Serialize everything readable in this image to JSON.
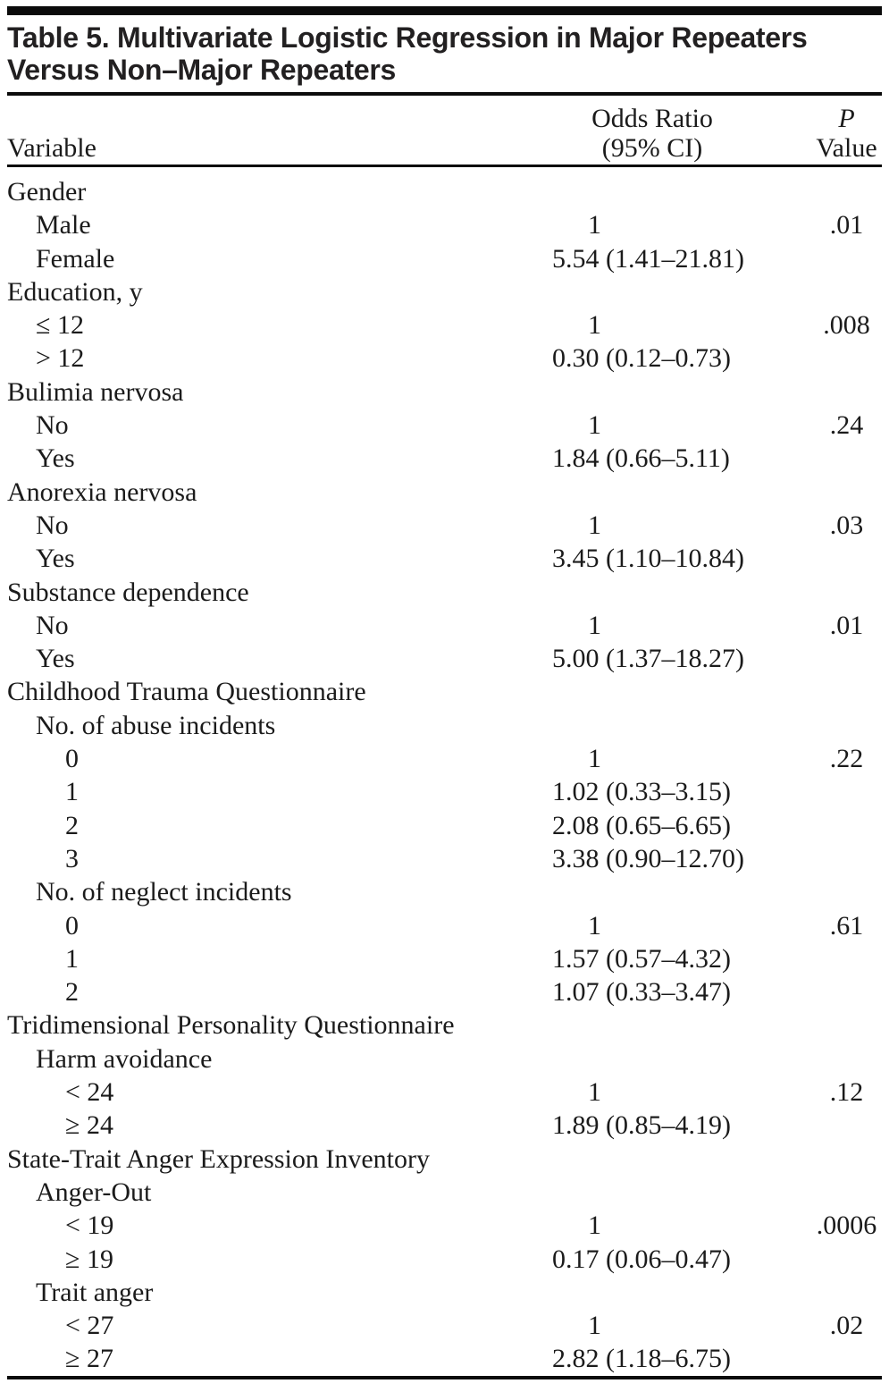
{
  "table": {
    "title_line1": "Table 5. Multivariate Logistic Regression in Major Repeaters",
    "title_line2": "Versus Non–Major Repeaters",
    "columns": {
      "variable": "Variable",
      "odds_ratio_line1": "Odds Ratio",
      "odds_ratio_line2": "(95% CI)",
      "p_line1": "P",
      "p_line2": "Value"
    },
    "rows": [
      {
        "label": "Gender",
        "indent": 0,
        "or": "",
        "p": ""
      },
      {
        "label": "Male",
        "indent": 1,
        "or": "1",
        "p": ".01"
      },
      {
        "label": "Female",
        "indent": 1,
        "or": "5.54 (1.41–21.81)",
        "p": ""
      },
      {
        "label": "Education, y",
        "indent": 0,
        "or": "",
        "p": ""
      },
      {
        "label": "≤ 12",
        "indent": 1,
        "or": "1",
        "p": ".008"
      },
      {
        "label": "> 12",
        "indent": 1,
        "or": "0.30 (0.12–0.73)",
        "p": ""
      },
      {
        "label": "Bulimia nervosa",
        "indent": 0,
        "or": "",
        "p": ""
      },
      {
        "label": "No",
        "indent": 1,
        "or": "1",
        "p": ".24"
      },
      {
        "label": "Yes",
        "indent": 1,
        "or": "1.84 (0.66–5.11)",
        "p": ""
      },
      {
        "label": "Anorexia nervosa",
        "indent": 0,
        "or": "",
        "p": ""
      },
      {
        "label": "No",
        "indent": 1,
        "or": "1",
        "p": ".03"
      },
      {
        "label": "Yes",
        "indent": 1,
        "or": "3.45 (1.10–10.84)",
        "p": ""
      },
      {
        "label": "Substance dependence",
        "indent": 0,
        "or": "",
        "p": ""
      },
      {
        "label": "No",
        "indent": 1,
        "or": "1",
        "p": ".01"
      },
      {
        "label": "Yes",
        "indent": 1,
        "or": "5.00 (1.37–18.27)",
        "p": ""
      },
      {
        "label": "Childhood Trauma Questionnaire",
        "indent": 0,
        "or": "",
        "p": ""
      },
      {
        "label": "No. of abuse incidents",
        "indent": 1,
        "or": "",
        "p": ""
      },
      {
        "label": "0",
        "indent": 2,
        "or": "1",
        "p": ".22"
      },
      {
        "label": "1",
        "indent": 2,
        "or": "1.02 (0.33–3.15)",
        "p": ""
      },
      {
        "label": "2",
        "indent": 2,
        "or": "2.08 (0.65–6.65)",
        "p": ""
      },
      {
        "label": "3",
        "indent": 2,
        "or": "3.38 (0.90–12.70)",
        "p": ""
      },
      {
        "label": "No. of neglect incidents",
        "indent": 1,
        "or": "",
        "p": ""
      },
      {
        "label": "0",
        "indent": 2,
        "or": "1",
        "p": ".61"
      },
      {
        "label": "1",
        "indent": 2,
        "or": "1.57 (0.57–4.32)",
        "p": ""
      },
      {
        "label": "2",
        "indent": 2,
        "or": "1.07 (0.33–3.47)",
        "p": ""
      },
      {
        "label": "Tridimensional Personality Questionnaire",
        "indent": 0,
        "or": "",
        "p": ""
      },
      {
        "label": "Harm avoidance",
        "indent": 1,
        "or": "",
        "p": ""
      },
      {
        "label": "< 24",
        "indent": 2,
        "or": "1",
        "p": ".12"
      },
      {
        "label": "≥ 24",
        "indent": 2,
        "or": "1.89 (0.85–4.19)",
        "p": ""
      },
      {
        "label": "State-Trait Anger Expression Inventory",
        "indent": 0,
        "or": "",
        "p": ""
      },
      {
        "label": "Anger-Out",
        "indent": 1,
        "or": "",
        "p": ""
      },
      {
        "label": "< 19",
        "indent": 2,
        "or": "1",
        "p": ".0006"
      },
      {
        "label": "≥ 19",
        "indent": 2,
        "or": "0.17 (0.06–0.47)",
        "p": ""
      },
      {
        "label": "Trait anger",
        "indent": 1,
        "or": "",
        "p": ""
      },
      {
        "label": "< 27",
        "indent": 2,
        "or": "1",
        "p": ".02"
      },
      {
        "label": "≥ 27",
        "indent": 2,
        "or": "2.82 (1.18–6.75)",
        "p": ""
      }
    ]
  }
}
